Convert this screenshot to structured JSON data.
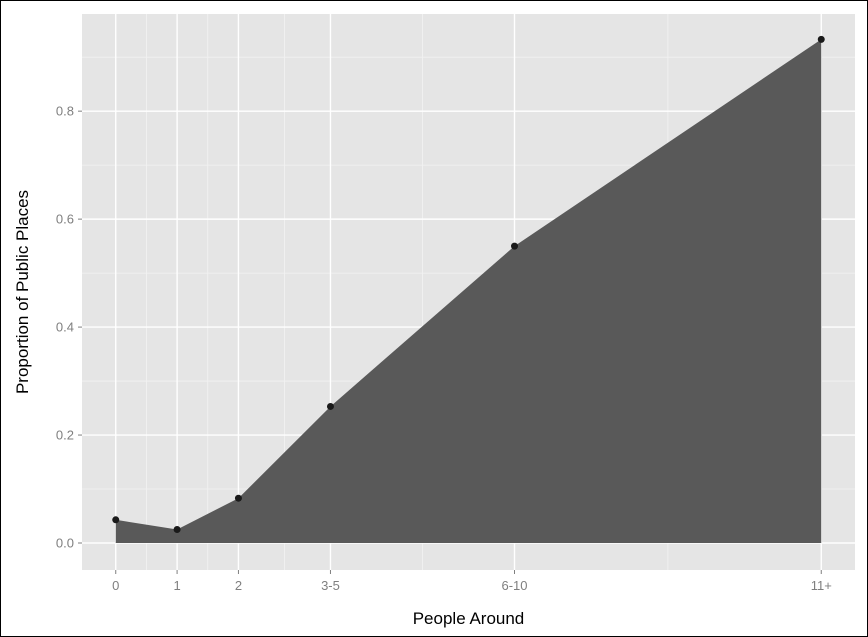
{
  "chart_data": {
    "type": "area",
    "title": "",
    "xlabel": "People Around",
    "ylabel": "Proportion of Public Places",
    "x_is_numeric": true,
    "x": [
      0,
      1,
      2,
      3.5,
      6.5,
      11.5
    ],
    "x_tick_labels": [
      "0",
      "1",
      "2",
      "3-5",
      "6-10",
      "11+"
    ],
    "values": [
      0.043,
      0.025,
      0.083,
      0.253,
      0.55,
      0.933
    ],
    "y_ticks": [
      0.0,
      0.2,
      0.4,
      0.6,
      0.8
    ],
    "y_tick_labels": [
      "0.0",
      "0.2",
      "0.4",
      "0.6",
      "0.8"
    ],
    "xlim": [
      -0.55,
      12.05
    ],
    "ylim": [
      -0.05,
      0.98
    ],
    "grid": true,
    "legend": "none",
    "colors": {
      "area_fill": "#595959",
      "points": "#1a1a1a",
      "panel_background": "#e5e5e5",
      "grid_major": "#ffffff",
      "grid_minor": "#f2f2f2"
    }
  }
}
